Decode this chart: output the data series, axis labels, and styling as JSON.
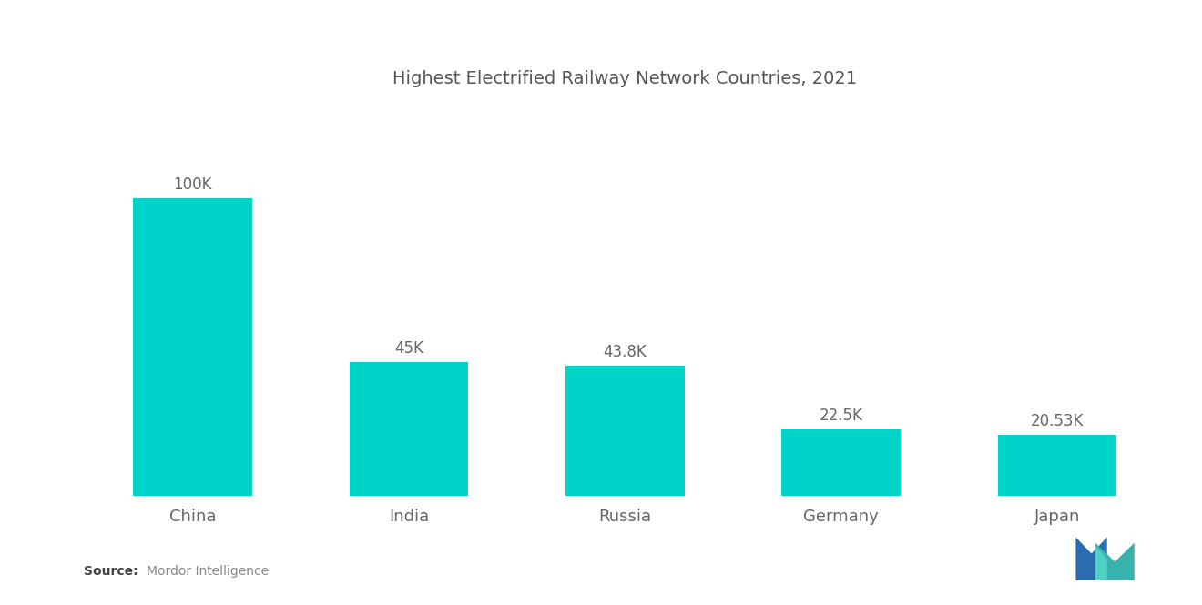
{
  "title": "Highest Electrified Railway Network Countries, 2021",
  "categories": [
    "China",
    "India",
    "Russia",
    "Germany",
    "Japan"
  ],
  "values": [
    100000,
    45000,
    43800,
    22500,
    20530
  ],
  "labels": [
    "100K",
    "45K",
    "43.8K",
    "22.5K",
    "20.53K"
  ],
  "bar_color": "#00D4C8",
  "background_color": "#ffffff",
  "title_color": "#555555",
  "label_color": "#666666",
  "source_bold": "Source:",
  "source_text": "  Mordor Intelligence",
  "ylim": [
    0,
    130000
  ],
  "bar_width": 0.55
}
